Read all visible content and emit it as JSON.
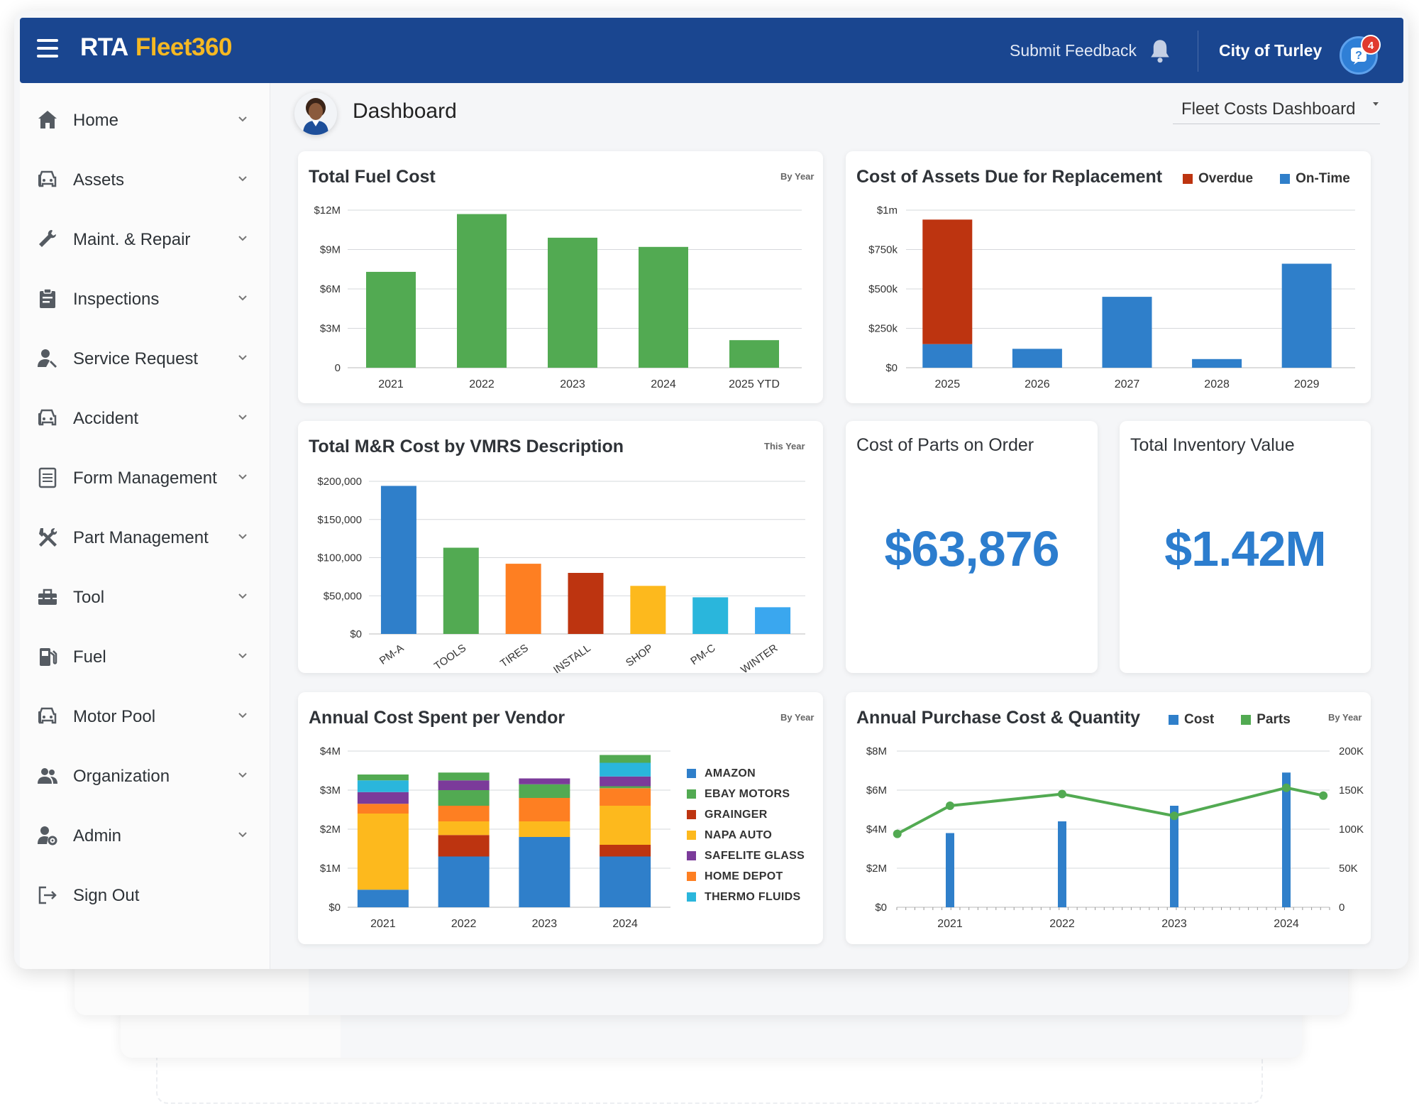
{
  "app": {
    "brand_part1": "RTA",
    "brand_part2": "Fleet360",
    "feedback_label": "Submit Feedback",
    "org_name": "City of Turley",
    "notification_count": "4"
  },
  "sidebar": {
    "items": [
      {
        "label": "Home",
        "icon": "home-icon"
      },
      {
        "label": "Assets",
        "icon": "car-icon"
      },
      {
        "label": "Maint. & Repair",
        "icon": "wrench-icon"
      },
      {
        "label": "Inspections",
        "icon": "clipboard-icon"
      },
      {
        "label": "Service Request",
        "icon": "user-wrench-icon"
      },
      {
        "label": "Accident",
        "icon": "car-icon"
      },
      {
        "label": "Form Management",
        "icon": "form-icon"
      },
      {
        "label": "Part Management",
        "icon": "tools-icon"
      },
      {
        "label": "Tool",
        "icon": "toolbox-icon"
      },
      {
        "label": "Fuel",
        "icon": "fuel-icon"
      },
      {
        "label": "Motor Pool",
        "icon": "car-icon"
      },
      {
        "label": "Organization",
        "icon": "group-icon"
      },
      {
        "label": "Admin",
        "icon": "user-gear-icon"
      },
      {
        "label": "Sign Out",
        "icon": "sign-out-icon"
      }
    ]
  },
  "main": {
    "title": "Dashboard",
    "dashboard_select": "Fleet Costs Dashboard"
  },
  "colors": {
    "green": "#52aa52",
    "blue": "#2f7fca",
    "red": "#bd3410",
    "orange": "#fe7f22",
    "yellow": "#fdb91d",
    "purple": "#7b3b9a",
    "cyan": "#2ab6dc",
    "lightblue": "#3aa7ef",
    "accent": "#1a4690"
  },
  "cards": {
    "fuel": {
      "title": "Total Fuel Cost",
      "period": "By Year"
    },
    "replacement": {
      "title": "Cost of Assets Due for Replacement"
    },
    "mr": {
      "title": "Total M&R Cost by VMRS Description",
      "period": "This Year"
    },
    "parts_order": {
      "title": "Cost of Parts on Order",
      "value": "$63,876"
    },
    "inventory": {
      "title": "Total Inventory Value",
      "value": "$1.42M"
    },
    "vendor": {
      "title": "Annual Cost Spent per Vendor",
      "period": "By Year"
    },
    "purchase": {
      "title": "Annual Purchase Cost & Quantity",
      "period": "By Year"
    }
  },
  "chart_data": [
    {
      "id": "fuel",
      "type": "bar",
      "title": "Total Fuel Cost",
      "categories": [
        "2021",
        "2022",
        "2023",
        "2024",
        "2025 YTD"
      ],
      "values": [
        7.3,
        11.7,
        9.9,
        9.2,
        2.1
      ],
      "yticks": [
        "0",
        "$3M",
        "$6M",
        "$9M",
        "$12M"
      ],
      "ylim": [
        0,
        12
      ],
      "color": "#52aa52",
      "grid": true
    },
    {
      "id": "replacement",
      "type": "bar",
      "stacked": true,
      "title": "Cost of Assets Due for Replacement",
      "categories": [
        "2025",
        "2026",
        "2027",
        "2028",
        "2029"
      ],
      "series": [
        {
          "name": "On-Time",
          "color": "#2f7fca",
          "values": [
            150,
            120,
            450,
            55,
            660
          ]
        },
        {
          "name": "Overdue",
          "color": "#bd3410",
          "values": [
            790,
            0,
            0,
            0,
            0
          ]
        }
      ],
      "yticks": [
        "$0",
        "$250k",
        "$500k",
        "$750k",
        "$1m"
      ],
      "ylim": [
        0,
        1000
      ],
      "legend": "top-right",
      "grid": true
    },
    {
      "id": "mr",
      "type": "bar",
      "title": "Total M&R Cost by VMRS Description",
      "categories": [
        "PM-A",
        "TOOLS",
        "TIRES",
        "INSTALL",
        "SHOP",
        "PM-C",
        "WINTER"
      ],
      "values": [
        194000,
        113000,
        92000,
        80000,
        63000,
        48000,
        35000
      ],
      "colors": [
        "#2f7fca",
        "#52aa52",
        "#fe7f22",
        "#bd3410",
        "#fdb91d",
        "#2ab6dc",
        "#3aa7ef"
      ],
      "yticks": [
        "$0",
        "$50,000",
        "$100,000",
        "$150,000",
        "$200,000"
      ],
      "ylim": [
        0,
        200000
      ],
      "grid": true
    },
    {
      "id": "vendor",
      "type": "bar",
      "stacked": true,
      "title": "Annual Cost Spent per Vendor",
      "categories": [
        "2021",
        "2022",
        "2023",
        "2024"
      ],
      "series": [
        {
          "name": "AMAZON",
          "color": "#2f7fca",
          "values": [
            0.45,
            1.3,
            1.8,
            1.3
          ]
        },
        {
          "name": "GRAINGER",
          "color": "#bd3410",
          "values": [
            0,
            0.55,
            0,
            0.3
          ]
        },
        {
          "name": "NAPA AUTO",
          "color": "#fdb91d",
          "values": [
            1.95,
            0.35,
            0.4,
            1.0
          ]
        },
        {
          "name": "HOME DEPOT",
          "color": "#fe7f22",
          "values": [
            0.25,
            0.4,
            0.6,
            0.45
          ]
        },
        {
          "name": "EBAY MOTORS",
          "color": "#52aa52",
          "values": [
            0,
            0.4,
            0.35,
            0.05
          ]
        },
        {
          "name": "SAFELITE GLASS",
          "color": "#7b3b9a",
          "values": [
            0.3,
            0.25,
            0.15,
            0.25
          ]
        },
        {
          "name": "THERMO FLUIDS",
          "color": "#2ab6dc",
          "values": [
            0.3,
            0,
            0,
            0.35
          ]
        },
        {
          "name": "EBAY MOTORS",
          "color": "#52aa52",
          "values": [
            0.15,
            0.2,
            0,
            0.2
          ]
        }
      ],
      "legend_entries": [
        {
          "name": "AMAZON",
          "color": "#2f7fca"
        },
        {
          "name": "EBAY MOTORS",
          "color": "#52aa52"
        },
        {
          "name": "GRAINGER",
          "color": "#bd3410"
        },
        {
          "name": "NAPA AUTO",
          "color": "#fdb91d"
        },
        {
          "name": "SAFELITE GLASS",
          "color": "#7b3b9a"
        },
        {
          "name": "HOME DEPOT",
          "color": "#fe7f22"
        },
        {
          "name": "THERMO FLUIDS",
          "color": "#2ab6dc"
        }
      ],
      "yticks": [
        "$0",
        "$1M",
        "$2M",
        "$3M",
        "$4M"
      ],
      "ylim": [
        0,
        4
      ],
      "legend": "right",
      "grid": true
    },
    {
      "id": "purchase",
      "type": "bar+line",
      "title": "Annual Purchase Cost & Quantity",
      "categories": [
        "2021",
        "2022",
        "2023",
        "2024"
      ],
      "series": [
        {
          "name": "Cost",
          "color": "#2f7fca",
          "axis": "left",
          "values": [
            3.8,
            4.4,
            5.2,
            6.9
          ]
        },
        {
          "name": "Parts",
          "color": "#52aa52",
          "axis": "right",
          "x": [
            0,
            0.47,
            1.47,
            2.47,
            3.47,
            3.8
          ],
          "values": [
            94000,
            130000,
            145000,
            117000,
            153000,
            143000
          ]
        }
      ],
      "yticks_left": [
        "$0",
        "$2M",
        "$4M",
        "$6M",
        "$8M"
      ],
      "yticks_right": [
        "0",
        "50K",
        "100K",
        "150K",
        "200K"
      ],
      "ylim_left": [
        0,
        8
      ],
      "ylim_right": [
        0,
        200000
      ],
      "legend": "top",
      "grid": true
    }
  ]
}
